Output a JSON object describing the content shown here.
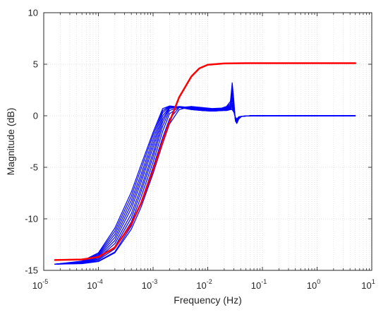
{
  "chart_data": {
    "type": "line",
    "title": "",
    "xlabel": "Frequency (Hz)",
    "ylabel": "Magnitude (dB)",
    "xscale": "log",
    "xlim": [
      1e-05,
      10
    ],
    "ylim": [
      -15,
      10
    ],
    "grid": true,
    "legend": "none",
    "x_ticks": [
      {
        "base": "10",
        "exp": "-5",
        "value": 1e-05
      },
      {
        "base": "10",
        "exp": "-4",
        "value": 0.0001
      },
      {
        "base": "10",
        "exp": "-3",
        "value": 0.001
      },
      {
        "base": "10",
        "exp": "-2",
        "value": 0.01
      },
      {
        "base": "10",
        "exp": "-1",
        "value": 0.1
      },
      {
        "base": "10",
        "exp": "0",
        "value": 1
      },
      {
        "base": "10",
        "exp": "1",
        "value": 10
      }
    ],
    "y_ticks": [
      {
        "label": "-15",
        "value": -15
      },
      {
        "label": "-10",
        "value": -10
      },
      {
        "label": "-5",
        "value": -5
      },
      {
        "label": "0",
        "value": 0
      },
      {
        "label": "5",
        "value": 5
      },
      {
        "label": "10",
        "value": 10
      }
    ],
    "colors": {
      "highlight": "#ff0000",
      "family": "#0000ff",
      "axes": "#262626",
      "grid": "#d9d9d9"
    },
    "series": [
      {
        "color": "#ff0000",
        "width": 2.5,
        "x": [
          1.6e-05,
          5e-05,
          0.0001,
          0.0002,
          0.0004,
          0.0006,
          0.001,
          0.0015,
          0.002,
          0.003,
          0.005,
          0.007,
          0.01,
          0.02,
          0.05,
          0.1,
          1,
          5
        ],
        "y": [
          -14,
          -13.95,
          -13.7,
          -12.8,
          -10.5,
          -8.5,
          -5.3,
          -2.5,
          -0.6,
          1.8,
          3.8,
          4.6,
          4.95,
          5.08,
          5.1,
          5.1,
          5.1,
          5.1
        ]
      },
      {
        "color": "#0000ff",
        "width": 1.2,
        "x": [
          1.6e-05,
          5e-05,
          0.0001,
          0.0002,
          0.0004,
          0.0006,
          0.001,
          0.0015,
          0.002,
          0.003,
          0.005,
          0.008,
          0.012,
          0.018,
          0.022,
          0.026,
          0.028,
          0.03,
          0.032,
          0.034,
          0.037,
          0.042,
          0.06,
          0.1,
          1,
          5
        ],
        "y": [
          -14.4,
          -14.35,
          -14.15,
          -13.3,
          -11.0,
          -8.9,
          -5.6,
          -2.7,
          -0.8,
          0.6,
          0.9,
          0.8,
          0.7,
          0.75,
          0.9,
          1.4,
          3.2,
          1.5,
          -0.5,
          -0.75,
          -0.3,
          -0.05,
          0.0,
          0.0,
          0.0,
          0.0
        ]
      },
      {
        "color": "#0000ff",
        "width": 1.2,
        "x": [
          1.6e-05,
          5e-05,
          0.0001,
          0.0002,
          0.0004,
          0.0006,
          0.001,
          0.0015,
          0.002,
          0.003,
          0.005,
          0.008,
          0.012,
          0.018,
          0.022,
          0.026,
          0.028,
          0.03,
          0.032,
          0.034,
          0.037,
          0.042,
          0.06,
          0.1,
          1,
          5
        ],
        "y": [
          -14.4,
          -14.33,
          -14.1,
          -13.2,
          -10.7,
          -8.4,
          -5.0,
          -2.1,
          -0.3,
          0.8,
          0.9,
          0.75,
          0.65,
          0.7,
          0.85,
          1.2,
          2.7,
          1.2,
          -0.45,
          -0.7,
          -0.3,
          -0.05,
          0.0,
          0.0,
          0.0,
          0.0
        ]
      },
      {
        "color": "#0000ff",
        "width": 1.2,
        "x": [
          1.6e-05,
          5e-05,
          0.0001,
          0.0002,
          0.0004,
          0.0006,
          0.001,
          0.0015,
          0.002,
          0.003,
          0.005,
          0.008,
          0.012,
          0.018,
          0.022,
          0.026,
          0.028,
          0.03,
          0.032,
          0.034,
          0.037,
          0.042,
          0.06,
          0.1,
          1,
          5
        ],
        "y": [
          -14.4,
          -14.3,
          -14.0,
          -12.9,
          -10.3,
          -7.9,
          -4.5,
          -1.5,
          0.2,
          0.85,
          0.85,
          0.7,
          0.6,
          0.65,
          0.8,
          1.05,
          2.2,
          1.0,
          -0.4,
          -0.65,
          -0.25,
          -0.05,
          0.0,
          0.0,
          0.0,
          0.0
        ]
      },
      {
        "color": "#0000ff",
        "width": 1.2,
        "x": [
          1.6e-05,
          5e-05,
          0.0001,
          0.0002,
          0.0004,
          0.0006,
          0.001,
          0.0015,
          0.002,
          0.003,
          0.005,
          0.008,
          0.012,
          0.018,
          0.022,
          0.026,
          0.028,
          0.03,
          0.032,
          0.034,
          0.037,
          0.042,
          0.06,
          0.1,
          1,
          5
        ],
        "y": [
          -14.4,
          -14.28,
          -13.9,
          -12.7,
          -9.9,
          -7.4,
          -4.0,
          -1.0,
          0.5,
          0.9,
          0.8,
          0.65,
          0.55,
          0.6,
          0.75,
          0.95,
          1.8,
          0.85,
          -0.35,
          -0.6,
          -0.25,
          -0.05,
          0.0,
          0.0,
          0.0,
          0.0
        ]
      },
      {
        "color": "#0000ff",
        "width": 1.2,
        "x": [
          1.6e-05,
          5e-05,
          0.0001,
          0.0002,
          0.0004,
          0.0006,
          0.001,
          0.0015,
          0.002,
          0.003,
          0.005,
          0.008,
          0.012,
          0.018,
          0.022,
          0.026,
          0.028,
          0.03,
          0.032,
          0.034,
          0.037,
          0.042,
          0.06,
          0.1,
          1,
          5
        ],
        "y": [
          -14.4,
          -14.25,
          -13.8,
          -12.4,
          -9.5,
          -7.0,
          -3.6,
          -0.6,
          0.7,
          0.9,
          0.75,
          0.6,
          0.5,
          0.55,
          0.7,
          0.85,
          1.5,
          0.7,
          -0.3,
          -0.55,
          -0.2,
          -0.05,
          0.0,
          0.0,
          0.0,
          0.0
        ]
      },
      {
        "color": "#0000ff",
        "width": 1.2,
        "x": [
          1.6e-05,
          5e-05,
          0.0001,
          0.0002,
          0.0004,
          0.0006,
          0.001,
          0.0015,
          0.002,
          0.003,
          0.005,
          0.008,
          0.012,
          0.018,
          0.022,
          0.026,
          0.028,
          0.03,
          0.032,
          0.034,
          0.037,
          0.042,
          0.06,
          0.1,
          1,
          5
        ],
        "y": [
          -14.4,
          -14.22,
          -13.7,
          -12.1,
          -9.0,
          -6.5,
          -3.1,
          -0.3,
          0.8,
          0.85,
          0.7,
          0.55,
          0.5,
          0.55,
          0.65,
          0.8,
          1.2,
          0.6,
          -0.25,
          -0.5,
          -0.2,
          -0.05,
          0.0,
          0.0,
          0.0,
          0.0
        ]
      },
      {
        "color": "#0000ff",
        "width": 1.2,
        "x": [
          1.6e-05,
          5e-05,
          0.0001,
          0.0002,
          0.0004,
          0.0006,
          0.001,
          0.0015,
          0.002,
          0.003,
          0.005,
          0.008,
          0.012,
          0.018,
          0.022,
          0.026,
          0.028,
          0.03,
          0.032,
          0.034,
          0.037,
          0.042,
          0.06,
          0.1,
          1,
          5
        ],
        "y": [
          -14.4,
          -14.2,
          -13.6,
          -11.8,
          -8.6,
          -6.1,
          -2.7,
          0.0,
          0.85,
          0.85,
          0.65,
          0.55,
          0.45,
          0.5,
          0.6,
          0.75,
          1.0,
          0.5,
          -0.2,
          -0.45,
          -0.15,
          -0.05,
          0.0,
          0.0,
          0.0,
          0.0
        ]
      },
      {
        "color": "#0000ff",
        "width": 1.2,
        "x": [
          1.6e-05,
          5e-05,
          0.0001,
          0.0002,
          0.0004,
          0.0006,
          0.001,
          0.0015,
          0.002,
          0.003,
          0.005,
          0.008,
          0.012,
          0.018,
          0.022,
          0.026,
          0.028,
          0.03,
          0.032,
          0.034,
          0.037,
          0.042,
          0.06,
          0.1,
          1,
          5
        ],
        "y": [
          -14.4,
          -14.18,
          -13.5,
          -11.5,
          -8.2,
          -5.7,
          -2.3,
          0.3,
          0.9,
          0.85,
          0.65,
          0.5,
          0.45,
          0.5,
          0.55,
          0.7,
          0.85,
          0.45,
          -0.2,
          -0.4,
          -0.15,
          -0.05,
          0.0,
          0.0,
          0.0,
          0.0
        ]
      },
      {
        "color": "#0000ff",
        "width": 1.2,
        "x": [
          1.6e-05,
          5e-05,
          0.0001,
          0.0002,
          0.0004,
          0.0006,
          0.001,
          0.0015,
          0.002,
          0.003,
          0.005,
          0.008,
          0.012,
          0.018,
          0.022,
          0.026,
          0.028,
          0.03,
          0.032,
          0.034,
          0.037,
          0.042,
          0.06,
          0.1,
          1,
          5
        ],
        "y": [
          -14.4,
          -14.15,
          -13.4,
          -11.2,
          -7.8,
          -5.2,
          -1.9,
          0.5,
          0.95,
          0.85,
          0.6,
          0.5,
          0.45,
          0.5,
          0.55,
          0.65,
          0.7,
          0.4,
          -0.15,
          -0.35,
          -0.1,
          -0.05,
          0.0,
          0.0,
          0.0,
          0.0
        ]
      },
      {
        "color": "#0000ff",
        "width": 1.2,
        "x": [
          1.6e-05,
          5e-05,
          0.0001,
          0.0002,
          0.0004,
          0.0006,
          0.001,
          0.0015,
          0.002,
          0.003,
          0.005,
          0.008,
          0.012,
          0.018,
          0.022,
          0.026,
          0.028,
          0.03,
          0.032,
          0.034,
          0.037,
          0.042,
          0.06,
          0.1,
          1,
          5
        ],
        "y": [
          -14.4,
          -14.1,
          -13.3,
          -10.9,
          -7.4,
          -4.8,
          -1.6,
          0.7,
          0.95,
          0.8,
          0.6,
          0.5,
          0.45,
          0.5,
          0.5,
          0.6,
          0.6,
          0.35,
          -0.15,
          -0.3,
          -0.1,
          -0.05,
          0.0,
          0.0,
          0.0,
          0.0
        ]
      }
    ]
  }
}
